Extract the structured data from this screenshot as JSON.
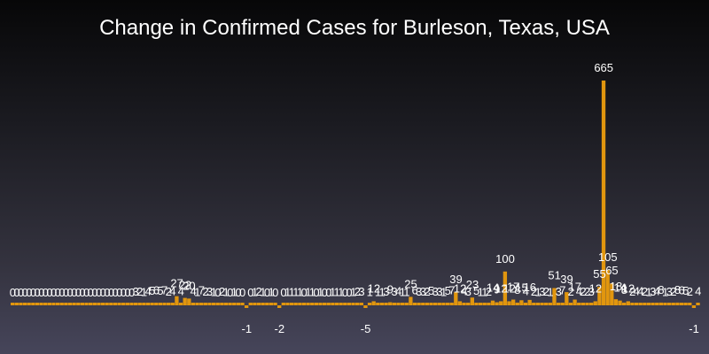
{
  "chart_data": {
    "type": "bar",
    "title": "Change in Confirmed Cases for Burleson, Texas, USA",
    "xlabel": "",
    "ylabel": "",
    "ylim": [
      -5,
      680
    ],
    "bar_color": "#e1960e",
    "label_color": "#ffffff",
    "values": [
      0,
      0,
      0,
      0,
      0,
      0,
      0,
      0,
      0,
      0,
      0,
      0,
      0,
      0,
      0,
      0,
      0,
      0,
      0,
      0,
      0,
      0,
      0,
      0,
      0,
      0,
      0,
      0,
      0,
      0,
      3,
      2,
      1,
      4,
      5,
      6,
      5,
      7,
      2,
      4,
      27,
      4,
      22,
      20,
      4,
      1,
      7,
      2,
      3,
      1,
      0,
      2,
      1,
      0,
      1,
      0,
      0,
      -1,
      0,
      1,
      2,
      1,
      0,
      1,
      0,
      -2,
      0,
      1,
      1,
      1,
      1,
      0,
      1,
      1,
      0,
      1,
      0,
      0,
      1,
      1,
      1,
      0,
      0,
      1,
      2,
      3,
      -5,
      1,
      12,
      1,
      1,
      3,
      9,
      3,
      4,
      1,
      1,
      25,
      6,
      3,
      3,
      2,
      5,
      3,
      3,
      1,
      5,
      7,
      39,
      12,
      4,
      3,
      23,
      5,
      1,
      1,
      2,
      14,
      9,
      12,
      100,
      12,
      17,
      8,
      15,
      4,
      16,
      2,
      1,
      3,
      2,
      1,
      51,
      3,
      7,
      39,
      2,
      17,
      4,
      2,
      2,
      3,
      12,
      55,
      665,
      105,
      65,
      18,
      14,
      8,
      12,
      2,
      4,
      4,
      2,
      1,
      3,
      4,
      8,
      1,
      3,
      2,
      8,
      6,
      5,
      2,
      -1,
      4
    ]
  }
}
